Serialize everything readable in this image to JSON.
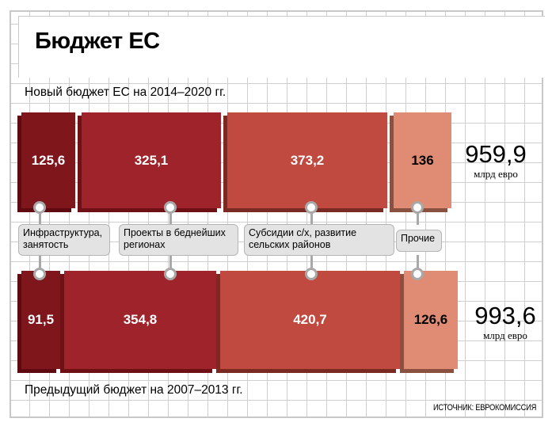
{
  "title": "Бюджет ЕС",
  "source": "ИСТОЧНИК: ЕВРОКОМИССИЯ",
  "chart_data": {
    "type": "bar",
    "orientation": "horizontal-stacked",
    "title": "Бюджет ЕС",
    "categories": [
      "Инфраструктура, занятость",
      "Проекты в беднейших регионах",
      "Субсидии с/х, развитие сельских районов",
      "Прочие"
    ],
    "series": [
      {
        "name": "Новый бюджет ЕС на 2014–2020 гг.",
        "values": [
          125.6,
          325.1,
          373.2,
          136
        ],
        "labels": [
          "125,6",
          "325,1",
          "373,2",
          "136"
        ],
        "total": "959,9"
      },
      {
        "name": "Предыдущий бюджет на 2007–2013 гг.",
        "values": [
          91.5,
          354.8,
          420.7,
          126.6
        ],
        "labels": [
          "91,5",
          "354,8",
          "420,7",
          "126,6"
        ],
        "total": "993,6"
      }
    ],
    "unit": "млрд евро",
    "colors": [
      {
        "face": "#7e161c",
        "side": "#5e0a10",
        "text": "#ffffff"
      },
      {
        "face": "#9e232a",
        "side": "#6e1016",
        "text": "#ffffff"
      },
      {
        "face": "#c04a40",
        "side": "#7a2a22",
        "text": "#ffffff"
      },
      {
        "face": "#e08b73",
        "side": "#8a5040",
        "text": "#000000"
      }
    ]
  }
}
